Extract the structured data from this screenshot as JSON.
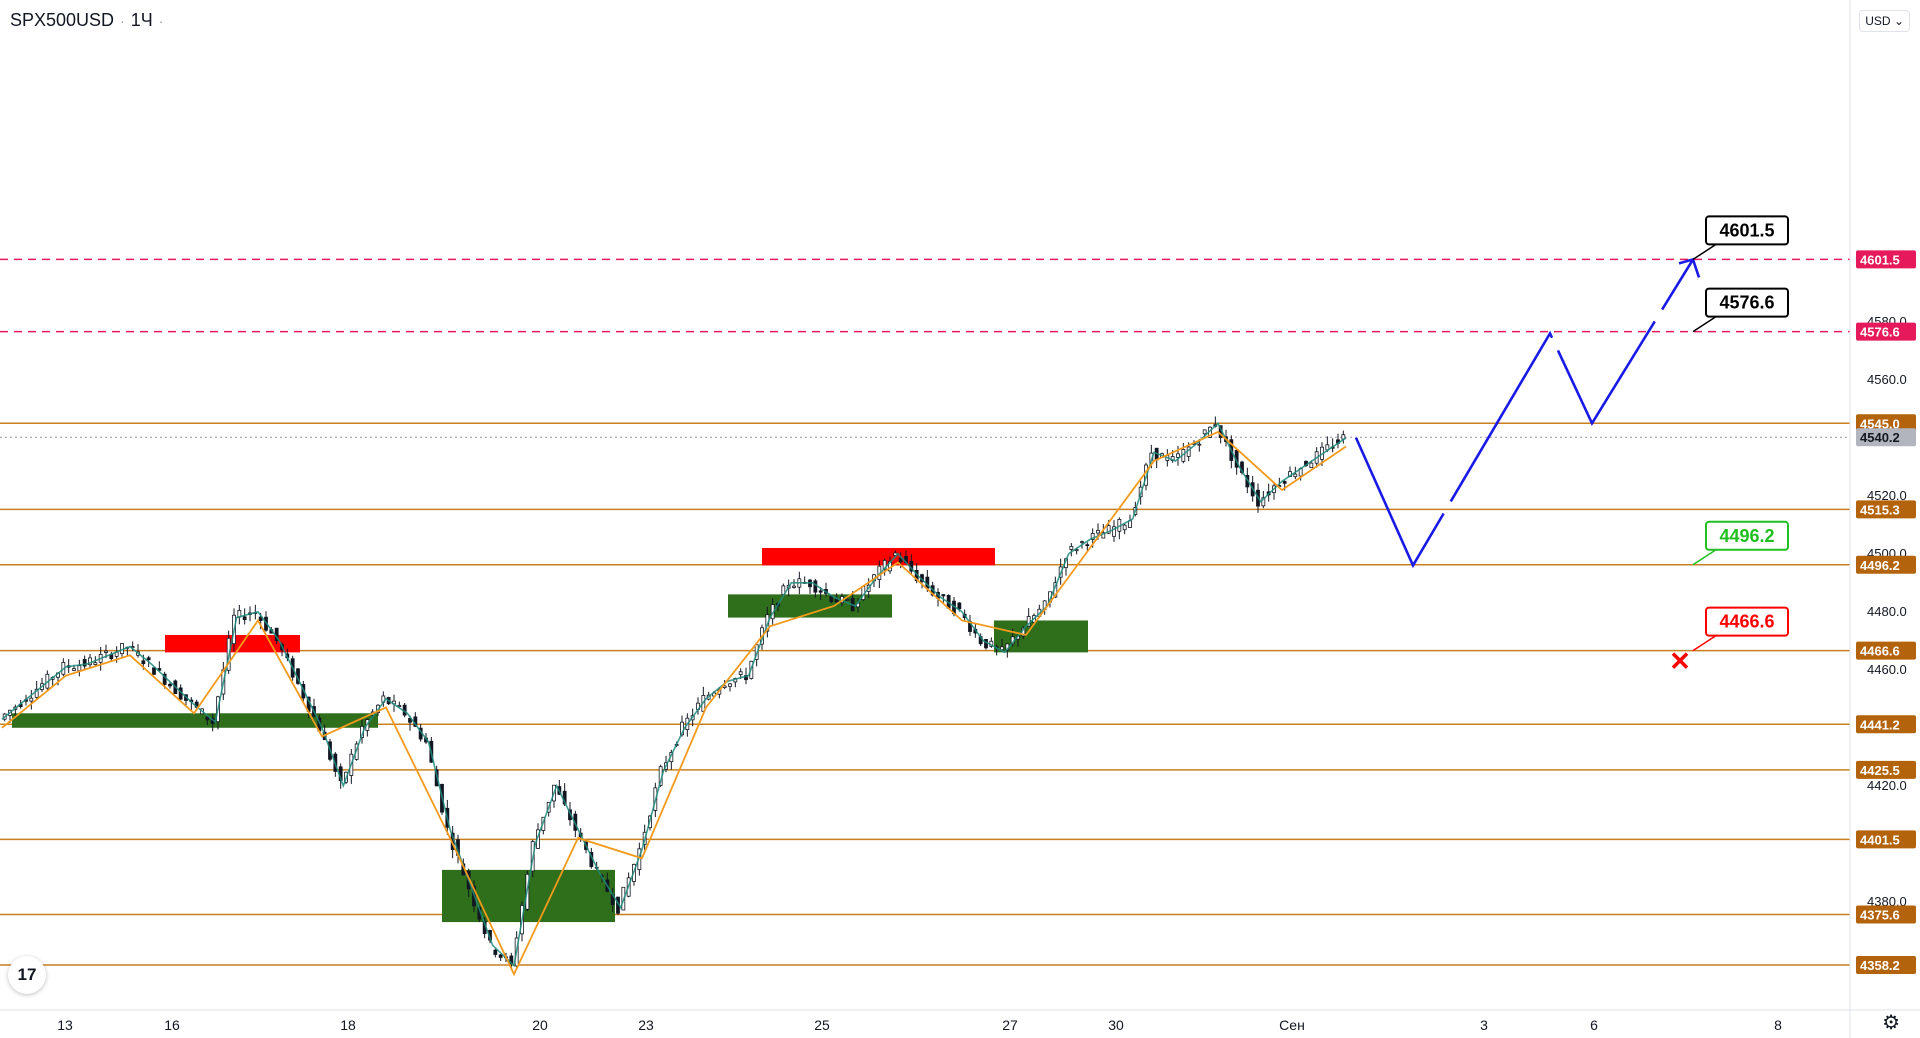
{
  "header": {
    "symbol": "SPX500USD",
    "interval": "1Ч"
  },
  "currency": "USD",
  "icons": {
    "logo": "tradingview-logo-icon",
    "settings": "gear-icon",
    "target_hit": "x-mark-icon"
  },
  "colors": {
    "level": "#c87f1f",
    "target_line": "#e6195c",
    "bull": "#2f6e1a",
    "bear": "#ff0000",
    "arrow": "#1a1ae6",
    "zig_orange": "#f39a1c",
    "zig_teal": "#1e8b7c",
    "green_label": "#20c020",
    "red_label": "#ff0000"
  },
  "chart_data": {
    "type": "candlestick",
    "instrument": "SPX500USD",
    "timeframe": "1H",
    "ylim": [
      4350,
      4615
    ],
    "y_ticks": [
      4380.0,
      4420.0,
      4460.0,
      4480.0,
      4500.0,
      4520.0,
      4560.0,
      4580.0
    ],
    "x_ticks": [
      "13",
      "16",
      "18",
      "20",
      "23",
      "25",
      "27",
      "30",
      "Сен",
      "3",
      "6",
      "8"
    ],
    "levels": [
      {
        "value": 4601.5,
        "label": "4601.5",
        "style": "target"
      },
      {
        "value": 4576.6,
        "label": "4576.6",
        "style": "target"
      },
      {
        "value": 4545.0,
        "label": "4545.0",
        "style": "level"
      },
      {
        "value": 4540.2,
        "label": "4540.2",
        "style": "last"
      },
      {
        "value": 4515.3,
        "label": "4515.3",
        "style": "level"
      },
      {
        "value": 4496.2,
        "label": "4496.2",
        "style": "level"
      },
      {
        "value": 4466.6,
        "label": "4466.6",
        "style": "level"
      },
      {
        "value": 4441.2,
        "label": "4441.2",
        "style": "level"
      },
      {
        "value": 4425.5,
        "label": "4425.5",
        "style": "level"
      },
      {
        "value": 4401.5,
        "label": "4401.5",
        "style": "level"
      },
      {
        "value": 4375.6,
        "label": "4375.6",
        "style": "level"
      },
      {
        "value": 4358.2,
        "label": "4358.2",
        "style": "level"
      }
    ],
    "price_path": [
      [
        "13",
        4443
      ],
      [
        "13",
        4449
      ],
      [
        "13",
        4455
      ],
      [
        "13",
        4461
      ],
      [
        "13",
        4462
      ],
      [
        "16",
        4465
      ],
      [
        "16",
        4468
      ],
      [
        "16",
        4462
      ],
      [
        "16",
        4455
      ],
      [
        "16",
        4448
      ],
      [
        "16",
        4442
      ],
      [
        "16",
        4478
      ],
      [
        "16",
        4480
      ],
      [
        "16",
        4470
      ],
      [
        "18",
        4455
      ],
      [
        "18",
        4440
      ],
      [
        "18",
        4420
      ],
      [
        "18",
        4440
      ],
      [
        "18",
        4450
      ],
      [
        "18",
        4445
      ],
      [
        "18",
        4435
      ],
      [
        "18",
        4405
      ],
      [
        "18",
        4385
      ],
      [
        "20",
        4365
      ],
      [
        "20",
        4358
      ],
      [
        "20",
        4400
      ],
      [
        "20",
        4420
      ],
      [
        "20",
        4405
      ],
      [
        "20",
        4390
      ],
      [
        "20",
        4378
      ],
      [
        "20",
        4398
      ],
      [
        "23",
        4425
      ],
      [
        "23",
        4440
      ],
      [
        "23",
        4450
      ],
      [
        "23",
        4456
      ],
      [
        "23",
        4458
      ],
      [
        "23",
        4478
      ],
      [
        "25",
        4490
      ],
      [
        "25",
        4490
      ],
      [
        "25",
        4485
      ],
      [
        "25",
        4482
      ],
      [
        "25",
        4492
      ],
      [
        "25",
        4500
      ],
      [
        "25",
        4492
      ],
      [
        "25",
        4485
      ],
      [
        "25",
        4480
      ],
      [
        "27",
        4470
      ],
      [
        "27",
        4466
      ],
      [
        "27",
        4475
      ],
      [
        "27",
        4482
      ],
      [
        "27",
        4500
      ],
      [
        "30",
        4505
      ],
      [
        "30",
        4508
      ],
      [
        "30",
        4512
      ],
      [
        "30",
        4535
      ],
      [
        "30",
        4532
      ],
      [
        "30",
        4538
      ],
      [
        "30",
        4545
      ],
      [
        "30",
        4530
      ],
      [
        "30",
        4518
      ],
      [
        "30",
        4525
      ],
      [
        "Сен",
        4530
      ],
      [
        "Сен",
        4535
      ],
      [
        "Сен",
        4540
      ]
    ],
    "zones": [
      {
        "type": "supply",
        "label": "",
        "from": 4466,
        "to": 4472,
        "at": "16"
      },
      {
        "type": "demand",
        "label": "",
        "from": 4440,
        "to": 4445,
        "at": "13-18"
      },
      {
        "type": "demand",
        "label": "",
        "from": 4373,
        "to": 4391,
        "at": "20"
      },
      {
        "type": "supply",
        "label": "",
        "from": 4496,
        "to": 4502,
        "at": "25"
      },
      {
        "type": "demand",
        "label": "",
        "from": 4478,
        "to": 4486,
        "at": "25"
      },
      {
        "type": "demand",
        "label": "",
        "from": 4466,
        "to": 4477,
        "at": "27"
      }
    ],
    "forecast_path": [
      4540,
      4496,
      4576,
      4545,
      4601.5
    ],
    "callouts": [
      {
        "text": "4601.5",
        "price": 4601.5,
        "color": "#000000"
      },
      {
        "text": "4576.6",
        "price": 4576.6,
        "color": "#000000"
      },
      {
        "text": "4496.2",
        "price": 4496.2,
        "color": "#20c020"
      },
      {
        "text": "4466.6",
        "price": 4466.6,
        "color": "#ff0000"
      }
    ]
  }
}
